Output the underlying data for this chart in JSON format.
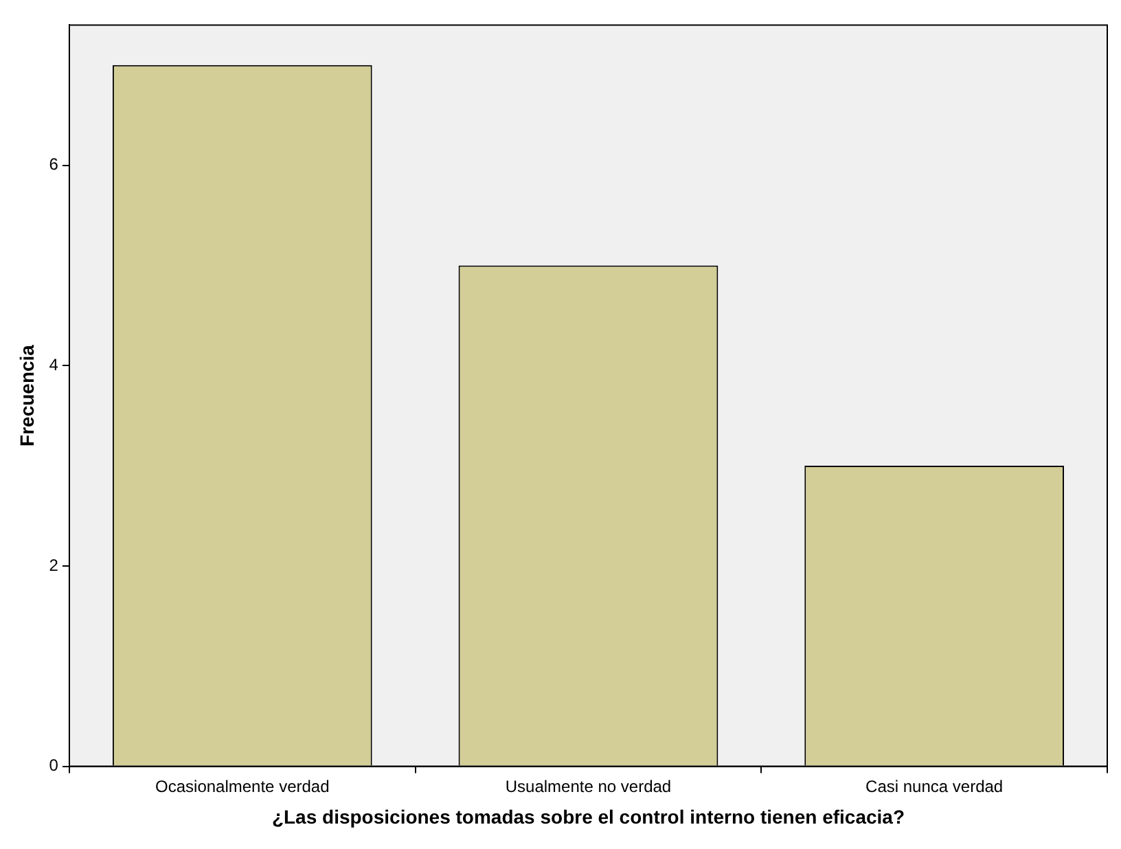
{
  "chart_data": {
    "type": "bar",
    "xlabel": "¿Las disposiciones tomadas sobre el control interno tienen eficacia?",
    "ylabel": "Frecuencia",
    "categories": [
      "Ocasionalmente verdad",
      "Usualmente no verdad",
      "Casi nunca verdad"
    ],
    "values": [
      7,
      5,
      3
    ],
    "color": "#d3ce97",
    "ylim": [
      0,
      7.4
    ],
    "yticks": [
      0,
      2,
      4,
      6
    ],
    "grid": false,
    "legend": false
  }
}
